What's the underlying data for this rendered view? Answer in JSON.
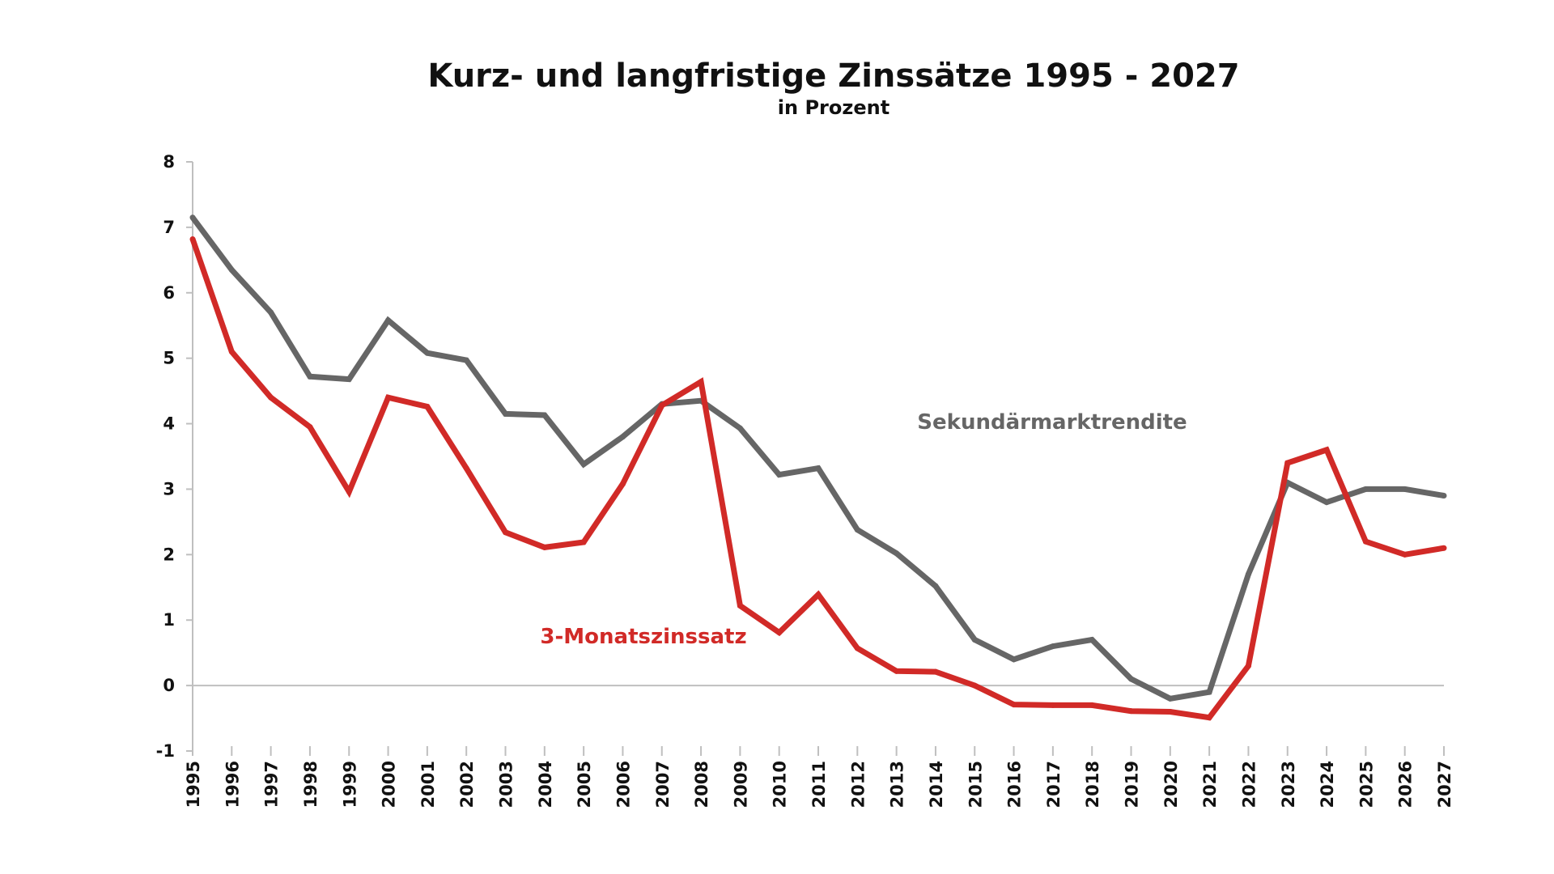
{
  "chart_data": {
    "type": "line",
    "title": "Kurz- und langfristige Zinssätze 1995 - 2027",
    "subtitle": "in Prozent",
    "xlabel": "",
    "ylabel": "",
    "ylim": [
      -1,
      8
    ],
    "y_ticks": [
      "-1",
      "0",
      "1",
      "2",
      "3",
      "4",
      "5",
      "6",
      "7",
      "8"
    ],
    "x": [
      "1995",
      "1996",
      "1997",
      "1998",
      "1999",
      "2000",
      "2001",
      "2002",
      "2003",
      "2004",
      "2005",
      "2006",
      "2007",
      "2008",
      "2009",
      "2010",
      "2011",
      "2012",
      "2013",
      "2014",
      "2015",
      "2016",
      "2017",
      "2018",
      "2019",
      "2020",
      "2021",
      "2022",
      "2023",
      "2024",
      "2025",
      "2026",
      "2027"
    ],
    "grid": false,
    "legend": "inline labels",
    "series": [
      {
        "name": "Sekundärmarktrendite",
        "color": "#666666",
        "values": [
          7.15,
          6.35,
          5.7,
          4.72,
          4.68,
          5.58,
          5.08,
          4.97,
          4.15,
          4.13,
          3.38,
          3.8,
          4.3,
          4.35,
          3.93,
          3.22,
          3.32,
          2.38,
          2.02,
          1.52,
          0.7,
          0.4,
          0.6,
          0.7,
          0.1,
          -0.2,
          -0.1,
          1.7,
          3.1,
          2.8,
          3.0,
          3.0,
          2.9
        ]
      },
      {
        "name": "3-Monatszinssatz",
        "color": "#d12a27",
        "values": [
          6.82,
          5.1,
          4.4,
          3.95,
          2.96,
          4.4,
          4.26,
          3.32,
          2.34,
          2.11,
          2.19,
          3.08,
          4.28,
          4.64,
          1.22,
          0.81,
          1.39,
          0.57,
          0.22,
          0.21,
          0.0,
          -0.29,
          -0.3,
          -0.3,
          -0.39,
          -0.4,
          -0.49,
          0.3,
          3.4,
          3.6,
          2.2,
          2.0,
          2.1
        ]
      }
    ]
  }
}
